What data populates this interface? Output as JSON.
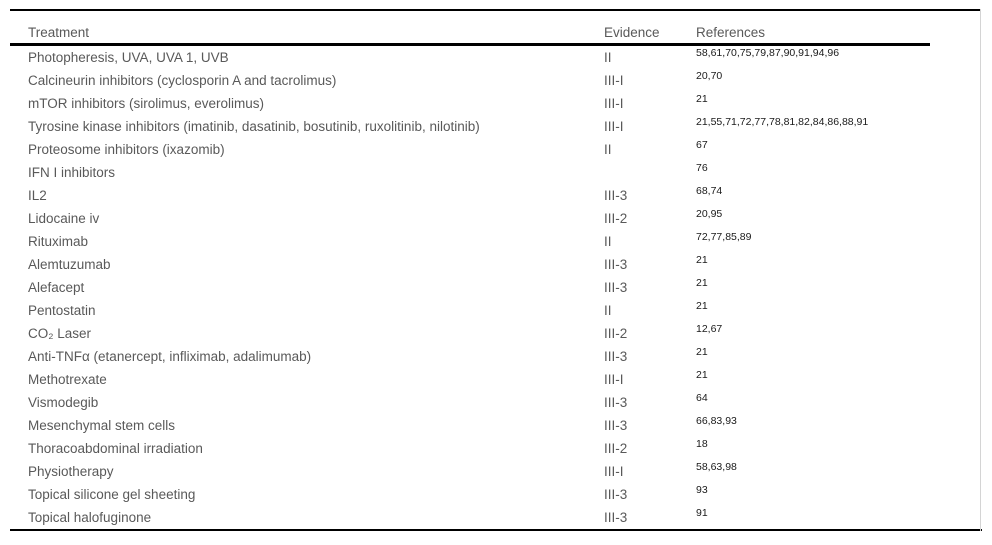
{
  "table": {
    "columns": {
      "treatment": "Treatment",
      "evidence": "Evidence",
      "references": "References"
    },
    "rows": [
      {
        "treatment": "Photopheresis, UVA, UVA 1, UVB",
        "evidence": "II",
        "references": "58,61,70,75,79,87,90,91,94,96"
      },
      {
        "treatment": "Calcineurin inhibitors (cyclosporin A and tacrolimus)",
        "evidence": "III-I",
        "references": "20,70"
      },
      {
        "treatment": "mTOR inhibitors (sirolimus, everolimus)",
        "evidence": "III-I",
        "references": "21"
      },
      {
        "treatment": "Tyrosine kinase inhibitors (imatinib, dasatinib, bosutinib, ruxolitinib, nilotinib)",
        "evidence": "III-I",
        "references": "21,55,71,72,77,78,81,82,84,86,88,91"
      },
      {
        "treatment": "Proteosome inhibitors (ixazomib)",
        "evidence": "II",
        "references": "67"
      },
      {
        "treatment": "IFN I inhibitors",
        "evidence": "",
        "references": "76"
      },
      {
        "treatment": "IL2",
        "evidence": "III-3",
        "references": "68,74"
      },
      {
        "treatment": "Lidocaine iv",
        "evidence": "III-2",
        "references": "20,95"
      },
      {
        "treatment": "Rituximab",
        "evidence": "II",
        "references": "72,77,85,89"
      },
      {
        "treatment": "Alemtuzumab",
        "evidence": "III-3",
        "references": "21"
      },
      {
        "treatment": "Alefacept",
        "evidence": "III-3",
        "references": "21"
      },
      {
        "treatment": "Pentostatin",
        "evidence": "II",
        "references": "21"
      },
      {
        "treatment": "CO₂ Laser",
        "evidence": "III-2",
        "references": "12,67"
      },
      {
        "treatment": "Anti-TNFα (etanercept, infliximab, adalimumab)",
        "evidence": "III-3",
        "references": "21"
      },
      {
        "treatment": "Methotrexate",
        "evidence": "III-I",
        "references": "21"
      },
      {
        "treatment": "Vismodegib",
        "evidence": "III-3",
        "references": "64"
      },
      {
        "treatment": "Mesenchymal stem cells",
        "evidence": "III-3",
        "references": "66,83,93"
      },
      {
        "treatment": "Thoracoabdominal irradiation",
        "evidence": "III-2",
        "references": "18"
      },
      {
        "treatment": "Physiotherapy",
        "evidence": "III-I",
        "references": "58,63,98"
      },
      {
        "treatment": "Topical silicone gel sheeting",
        "evidence": "III-3",
        "references": "93"
      },
      {
        "treatment": "Topical halofuginone",
        "evidence": "III-3",
        "references": "91"
      }
    ]
  },
  "colors": {
    "body_text": "#595959",
    "reference_text": "#1a1a1a",
    "rule": "#000000",
    "right_edge": "#d4d4d4",
    "background": "#ffffff"
  }
}
